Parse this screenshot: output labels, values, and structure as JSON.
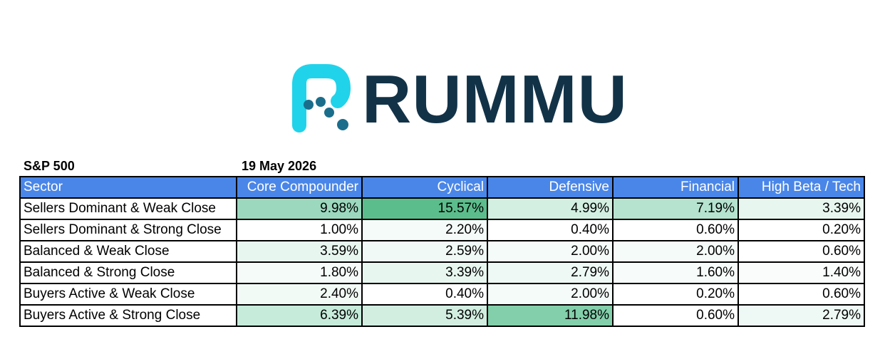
{
  "brand": {
    "name": "RUMMU",
    "teal": "#21d3ea",
    "navy": "#123247"
  },
  "meta": {
    "index": "S&P 500",
    "date": "19 May 2026"
  },
  "table": {
    "columns": [
      "Sector",
      "Core Compounder",
      "Cyclical",
      "Defensive",
      "Financial",
      "High Beta / Tech"
    ],
    "header_color": "#4a86e8",
    "rows": [
      {
        "label": "Sellers Dominant & Weak Close",
        "cells": [
          "9.98%",
          "15.57%",
          "4.99%",
          "7.19%",
          "3.39%"
        ],
        "colors": [
          "#9bd8be",
          "#5cbd8c",
          "#d3efe2",
          "#b5e3cf",
          "#e7f6ef"
        ]
      },
      {
        "label": "Sellers Dominant & Strong Close",
        "cells": [
          "1.00%",
          "2.20%",
          "0.40%",
          "0.60%",
          "0.20%"
        ],
        "colors": [
          "#ffffff",
          "#f4fbf8",
          "#ffffff",
          "#ffffff",
          "#ffffff"
        ]
      },
      {
        "label": "Balanced & Weak Close",
        "cells": [
          "3.59%",
          "2.59%",
          "2.00%",
          "2.00%",
          "0.60%"
        ],
        "colors": [
          "#e7f6ef",
          "#f0f9f5",
          "#f4fbf8",
          "#f4fbf8",
          "#ffffff"
        ]
      },
      {
        "label": "Balanced & Strong Close",
        "cells": [
          "1.80%",
          "3.39%",
          "2.79%",
          "1.60%",
          "1.40%"
        ],
        "colors": [
          "#f5fbf8",
          "#e7f6ef",
          "#eef8f4",
          "#f7fcfa",
          "#f9fcfb"
        ]
      },
      {
        "label": "Buyers Active & Weak Close",
        "cells": [
          "2.40%",
          "0.40%",
          "2.00%",
          "0.20%",
          "0.60%"
        ],
        "colors": [
          "#f2faf6",
          "#ffffff",
          "#f4fbf8",
          "#ffffff",
          "#ffffff"
        ]
      },
      {
        "label": "Buyers Active & Strong Close",
        "cells": [
          "6.39%",
          "5.39%",
          "11.98%",
          "0.60%",
          "2.79%"
        ],
        "colors": [
          "#c6ebdb",
          "#d1eee1",
          "#83cfab",
          "#ffffff",
          "#eef8f4"
        ]
      }
    ]
  }
}
